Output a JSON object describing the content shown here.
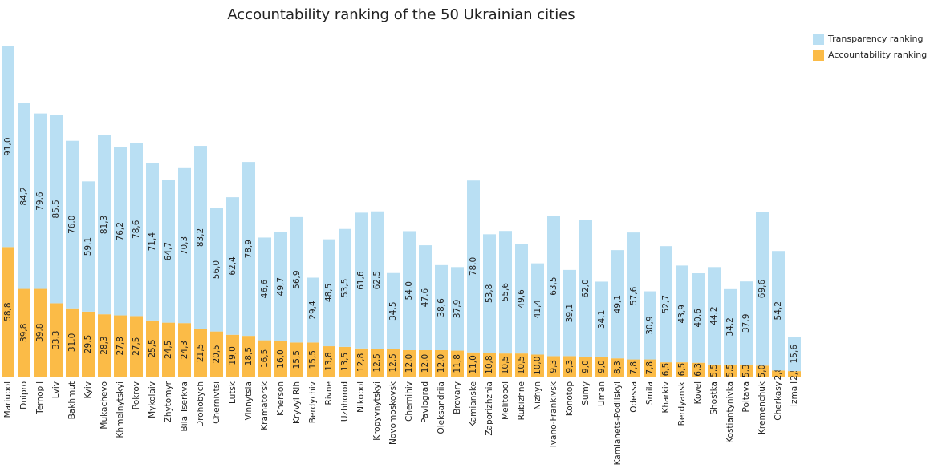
{
  "chart_data": {
    "type": "stacked_bar",
    "title": "Accountability ranking of the 50 Ukrainian cities",
    "categories": [
      "Mariupol",
      "Dnipro",
      "Ternopil",
      "Lviv",
      "Bakhmut",
      "Kyiv",
      "Mukachevo",
      "Khmelnytskyi",
      "Pokrov",
      "Mykolaiv",
      "Zhytomyr",
      "Bila Tserkva",
      "Drohobych",
      "Chernivtsi",
      "Lutsk",
      "Vinnytsia",
      "Kramatorsk",
      "Kherson",
      "Kryvyi Rih",
      "Berdychiv",
      "Rivne",
      "Uzhhorod",
      "Nikopol",
      "Kropyvnytskyi",
      "Novomoskovsk",
      "Chernihiv",
      "Pavlograd",
      "Oleksandriia",
      "Brovary",
      "Kamianske",
      "Zaporizhzhia",
      "Melitopol",
      "Rubizhne",
      "Nizhyn",
      "Ivano-Frankivsk",
      "Konotop",
      "Sumy",
      "Uman",
      "Kamianets-Podilskyi",
      "Odessa",
      "Smila",
      "Kharkiv",
      "Berdyansk",
      "Kovel",
      "Shostka",
      "Kostiantynivka",
      "Poltava",
      "Kremenchuk",
      "Cherkasy",
      "Izmail"
    ],
    "series": [
      {
        "name": "Transparency ranking",
        "color": "#b9dff3",
        "values": [
          91.0,
          84.2,
          79.6,
          85.5,
          76.0,
          59.1,
          81.3,
          76.2,
          78.6,
          71.4,
          64.7,
          70.3,
          83.2,
          56.0,
          62.4,
          78.9,
          46.6,
          49.7,
          56.9,
          29.4,
          48.5,
          53.5,
          61.6,
          62.5,
          34.5,
          54.0,
          47.6,
          38.6,
          37.9,
          78.0,
          53.8,
          55.6,
          49.6,
          41.4,
          63.5,
          39.1,
          62.0,
          34.1,
          49.1,
          57.6,
          30.9,
          52.7,
          43.9,
          40.6,
          44.2,
          34.2,
          37.9,
          69.6,
          54.2,
          15.6
        ],
        "value_labels": [
          "91,0",
          "84,2",
          "79,6",
          "85,5",
          "76,0",
          "59,1",
          "81,3",
          "76,2",
          "78,6",
          "71,4",
          "64,7",
          "70,3",
          "83,2",
          "56,0",
          "62,4",
          "78,9",
          "46,6",
          "49,7",
          "56,9",
          "29,4",
          "48,5",
          "53,5",
          "61,6",
          "62,5",
          "34,5",
          "54,0",
          "47,6",
          "38,6",
          "37,9",
          "78,0",
          "53,8",
          "55,6",
          "49,6",
          "41,4",
          "63,5",
          "39,1",
          "62,0",
          "34,1",
          "49,1",
          "57,6",
          "30,9",
          "52,7",
          "43,9",
          "40,6",
          "44,2",
          "34,2",
          "37,9",
          "69,6",
          "54,2",
          "15,6"
        ]
      },
      {
        "name": "Accountability ranking",
        "color": "#fbbb47",
        "values": [
          58.8,
          39.8,
          39.8,
          33.3,
          31.0,
          29.5,
          28.3,
          27.8,
          27.5,
          25.5,
          24.5,
          24.3,
          21.5,
          20.5,
          19.0,
          18.5,
          16.5,
          16.0,
          15.5,
          15.5,
          13.8,
          13.5,
          12.8,
          12.5,
          12.5,
          12.0,
          12.0,
          12.0,
          11.8,
          11.0,
          10.8,
          10.5,
          10.5,
          10.0,
          9.3,
          9.3,
          9.0,
          9.0,
          8.3,
          7.8,
          7.8,
          6.5,
          6.5,
          6.3,
          5.5,
          5.5,
          5.3,
          5.0,
          2.8,
          2.5
        ],
        "value_labels": [
          "58,8",
          "39,8",
          "39,8",
          "33,3",
          "31,0",
          "29,5",
          "28,3",
          "27,8",
          "27,5",
          "25,5",
          "24,5",
          "24,3",
          "21,5",
          "20,5",
          "19,0",
          "18,5",
          "16,5",
          "16,0",
          "15,5",
          "15,5",
          "13,8",
          "13,5",
          "12,8",
          "12,5",
          "12,5",
          "12,0",
          "12,0",
          "12,0",
          "11,8",
          "11,0",
          "10,8",
          "10,5",
          "10,5",
          "10,0",
          "9,3",
          "9,3",
          "9,0",
          "9,0",
          "8,3",
          "7,8",
          "7,8",
          "6,5",
          "6,5",
          "6,3",
          "5,5",
          "5,5",
          "5,3",
          "5,0",
          "2,8",
          "2,5"
        ]
      }
    ],
    "ylim": [
      0,
      150
    ],
    "legend": "top-right"
  }
}
